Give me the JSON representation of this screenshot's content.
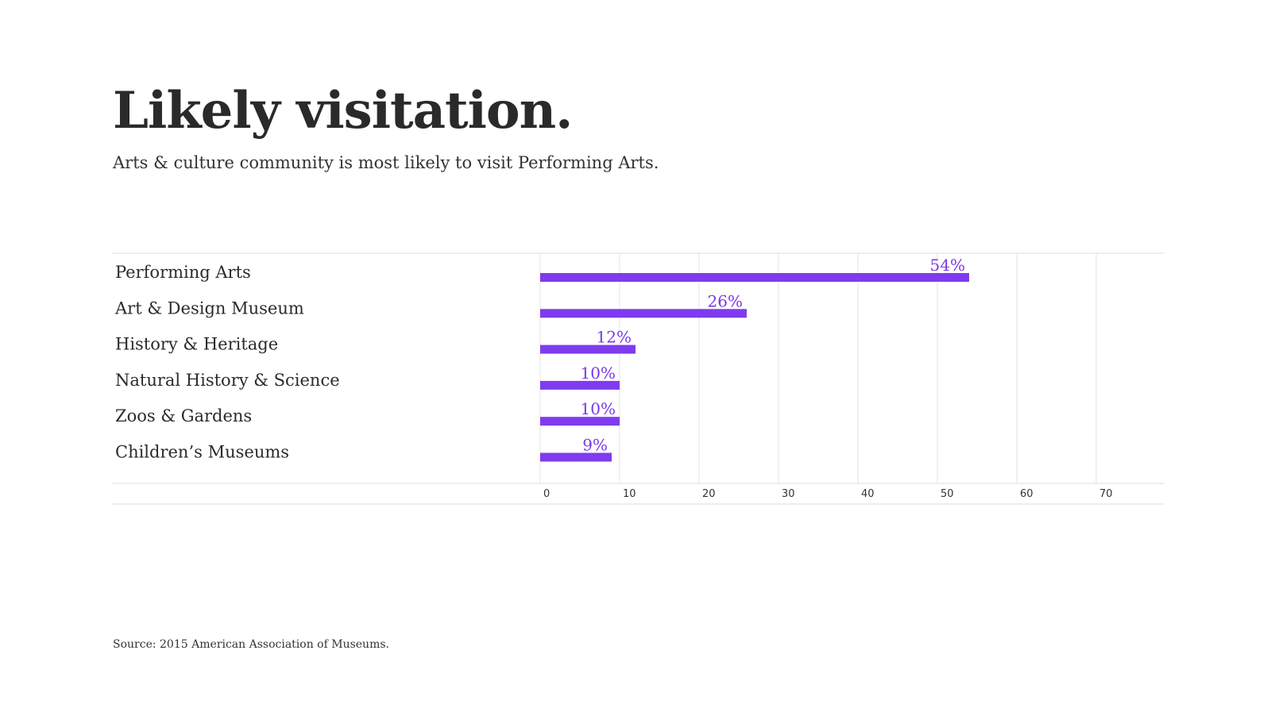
{
  "header": {
    "title": "Likely visitation.",
    "subtitle": "Arts & culture community is most likely to visit Performing Arts."
  },
  "footer": {
    "source": "Source: 2015 American Association of Museums."
  },
  "colors": {
    "bar": "#7f3bee",
    "label": "#7a38e6",
    "grid": "#e3e3ea",
    "rule": "#dedede",
    "text": "#2b2b2b"
  },
  "chart_data": {
    "type": "bar",
    "orientation": "horizontal",
    "categories": [
      "Performing Arts",
      "Art & Design Museum",
      "History & Heritage",
      "Natural History & Science",
      "Zoos & Gardens",
      "Children’s Museums"
    ],
    "values": [
      54,
      26,
      12,
      10,
      10,
      9
    ],
    "value_labels": [
      "54%",
      "26%",
      "12%",
      "10%",
      "10%",
      "9%"
    ],
    "xlim": [
      0,
      78
    ],
    "xticks": [
      0,
      10,
      20,
      30,
      40,
      50,
      60,
      70
    ],
    "xtick_labels": [
      "0",
      "10",
      "20",
      "30",
      "40",
      "50",
      "60",
      "70"
    ],
    "grid": true,
    "legend": "none"
  }
}
